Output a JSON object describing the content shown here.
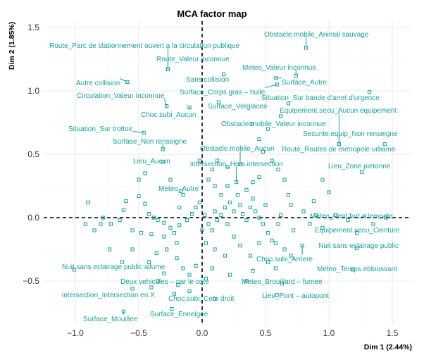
{
  "chart_data": {
    "type": "scatter",
    "title": "MCA factor map",
    "xlabel": "Dim 1 (2.44%)",
    "ylabel": "Dim 2 (1.85%)",
    "xlim": [
      -1.25,
      1.65
    ],
    "ylim": [
      -0.85,
      1.55
    ],
    "xticks": [
      -1.0,
      -0.5,
      0.0,
      0.5,
      1.0,
      1.5
    ],
    "yticks": [
      -0.5,
      0.0,
      0.5,
      1.0,
      1.5
    ],
    "xtick_labels": [
      "−1.0",
      "−0.5",
      "0.0",
      "0.5",
      "1.0",
      "1.5"
    ],
    "ytick_labels": [
      "−0.5",
      "0.0",
      "0.5",
      "1.0",
      "1.5"
    ],
    "colors": {
      "points": "#1a9e9e",
      "grid": "#ebebeb",
      "reference": "#000000"
    },
    "labeled_points": [
      {
        "label": "Obstacle.mobile_Animal sauvage",
        "x": 0.82,
        "y": 1.34
      },
      {
        "label": "Route_Parc de stationnement ouvert a la circulation publique",
        "x": -0.27,
        "y": 1.17
      },
      {
        "label": "Route_Valeur inconnue",
        "x": -0.27,
        "y": 1.17
      },
      {
        "label": "Meteo_Valeur inconnue",
        "x": 0.74,
        "y": 1.12
      },
      {
        "label": "Autre collision",
        "x": -0.59,
        "y": 1.07
      },
      {
        "label": "Sans collision",
        "x": 0.17,
        "y": 1.13
      },
      {
        "label": "Surface_Autre",
        "x": 0.58,
        "y": 1.1
      },
      {
        "label": "Surface_Corps gras – huile",
        "x": 0.59,
        "y": 1.05
      },
      {
        "label": "Circulation_Valeur inconnue",
        "x": -0.28,
        "y": 0.88
      },
      {
        "label": "Situation_Sur bande d'arret d'urgence",
        "x": 1.32,
        "y": 0.99
      },
      {
        "label": "Surface_Verglacee",
        "x": 0.13,
        "y": 0.91
      },
      {
        "label": "Choc.subi_Aucun",
        "x": -0.1,
        "y": 0.87
      },
      {
        "label": "Equipement.secu_Aucun equipement",
        "x": 1.08,
        "y": 0.58
      },
      {
        "label": "Obstacle.mobile_Valeur inconnue",
        "x": 0.39,
        "y": 0.74
      },
      {
        "label": "Situation_Sur trottoir",
        "x": -0.46,
        "y": 0.67
      },
      {
        "label": "Securite.equip_Non renseigne",
        "x": 1.08,
        "y": 0.58
      },
      {
        "label": "Surface_Non renseigne",
        "x": -0.31,
        "y": 0.54
      },
      {
        "label": "Route_Routes de metropole urbaine",
        "x": 1.44,
        "y": 0.58
      },
      {
        "label": "Obstacle.mobile_Aucun",
        "x": 0.3,
        "y": 0.42
      },
      {
        "label": "Lieu_Aucun",
        "x": -0.31,
        "y": 0.44
      },
      {
        "label": "intersection_Hors intersection",
        "x": 0.27,
        "y": 0.28
      },
      {
        "label": "Lieu_Zone pietonne",
        "x": 1.26,
        "y": 0.36
      },
      {
        "label": "Meteo_Autre",
        "x": -0.17,
        "y": 0.21
      },
      {
        "label": "Meteo_Vent fort – tempete",
        "x": 1.28,
        "y": 0.01
      },
      {
        "label": "Equipement.secu_Ceinture",
        "x": 1.22,
        "y": -0.12
      },
      {
        "label": "Nuit sans eclairage public",
        "x": 1.22,
        "y": -0.24
      },
      {
        "label": "Choc.subi_Arriere",
        "x": 0.79,
        "y": -0.22
      },
      {
        "label": "Nuit sans eclairage public allume",
        "x": -1.01,
        "y": -0.41
      },
      {
        "label": "Meteo_Temps ebloussant",
        "x": 1.19,
        "y": -0.41
      },
      {
        "label": "Deux vehicules – par le cote",
        "x": -0.19,
        "y": -0.53
      },
      {
        "label": "Meteo_Brouillard – fumee",
        "x": 0.63,
        "y": -0.52
      },
      {
        "label": "intersection_Intersection en X",
        "x": -0.55,
        "y": -0.56
      },
      {
        "label": "Lieu_Pont – autopont",
        "x": 0.59,
        "y": -0.61
      },
      {
        "label": "Choc.subi_Cote droit",
        "x": 0.1,
        "y": -0.64
      },
      {
        "label": "Surface_Enneigee",
        "x": -0.24,
        "y": -0.72
      },
      {
        "label": "Surface_Mouillee",
        "x": -0.62,
        "y": -0.74
      }
    ],
    "unlabeled_points": [
      [
        -0.6,
        0.13
      ],
      [
        -0.5,
        0.17
      ],
      [
        -0.45,
        0.11
      ],
      [
        -0.62,
        0.06
      ],
      [
        -0.65,
        -0.02
      ],
      [
        -0.72,
        -0.05
      ],
      [
        -0.8,
        -0.05
      ],
      [
        -0.42,
        0.03
      ],
      [
        -0.38,
        0.0
      ],
      [
        -0.35,
        -0.02
      ],
      [
        -0.3,
        -0.04
      ],
      [
        -0.25,
        -0.08
      ],
      [
        -0.55,
        -0.1
      ],
      [
        -0.48,
        -0.12
      ],
      [
        -0.4,
        -0.13
      ],
      [
        -0.3,
        -0.15
      ],
      [
        -0.22,
        -0.12
      ],
      [
        -0.18,
        -0.06
      ],
      [
        -0.12,
        -0.02
      ],
      [
        -0.08,
        0.03
      ],
      [
        -0.05,
        0.08
      ],
      [
        -0.02,
        0.12
      ],
      [
        -0.15,
        0.18
      ],
      [
        -0.2,
        -0.2
      ],
      [
        -0.28,
        -0.25
      ],
      [
        -0.36,
        -0.28
      ],
      [
        -0.42,
        -0.35
      ],
      [
        -0.55,
        -0.25
      ],
      [
        -0.73,
        -0.25
      ],
      [
        -0.63,
        -0.35
      ],
      [
        -0.2,
        -0.32
      ],
      [
        -0.15,
        -0.4
      ],
      [
        -0.1,
        -0.45
      ],
      [
        -0.05,
        -0.38
      ],
      [
        -0.3,
        -0.44
      ],
      [
        -0.35,
        -0.5
      ],
      [
        -0.4,
        -0.55
      ],
      [
        -0.22,
        -0.6
      ],
      [
        -0.1,
        -0.58
      ],
      [
        0.03,
        -0.48
      ],
      [
        0.08,
        -0.4
      ],
      [
        0.02,
        0.02
      ],
      [
        0.05,
        -0.05
      ],
      [
        0.08,
        -0.1
      ],
      [
        0.1,
        0.05
      ],
      [
        0.12,
        -0.02
      ],
      [
        0.15,
        0.02
      ],
      [
        0.18,
        0.08
      ],
      [
        0.2,
        -0.05
      ],
      [
        0.22,
        0.12
      ],
      [
        0.25,
        0.05
      ],
      [
        0.28,
        0.18
      ],
      [
        0.3,
        0.1
      ],
      [
        0.32,
        0.03
      ],
      [
        0.35,
        -0.02
      ],
      [
        0.38,
        0.08
      ],
      [
        0.4,
        0.15
      ],
      [
        0.42,
        0.05
      ],
      [
        0.45,
        0.0
      ],
      [
        0.48,
        -0.05
      ],
      [
        0.5,
        0.1
      ],
      [
        0.52,
        -0.12
      ],
      [
        0.55,
        -0.18
      ],
      [
        0.58,
        -0.2
      ],
      [
        0.6,
        -0.05
      ],
      [
        0.62,
        0.02
      ],
      [
        0.35,
        0.22
      ],
      [
        0.4,
        0.28
      ],
      [
        0.45,
        0.32
      ],
      [
        0.2,
        0.25
      ],
      [
        0.15,
        0.18
      ],
      [
        0.1,
        0.25
      ],
      [
        0.25,
        -0.15
      ],
      [
        0.3,
        -0.22
      ],
      [
        0.38,
        -0.3
      ],
      [
        0.45,
        -0.2
      ],
      [
        0.52,
        -0.35
      ],
      [
        0.58,
        -0.4
      ],
      [
        0.65,
        -0.25
      ],
      [
        0.7,
        -0.3
      ],
      [
        0.72,
        -0.1
      ],
      [
        0.8,
        0.05
      ],
      [
        0.85,
        -0.05
      ],
      [
        0.9,
        0.02
      ],
      [
        0.95,
        -0.08
      ],
      [
        0.88,
        0.13
      ],
      [
        0.7,
        0.1
      ],
      [
        0.68,
        0.18
      ],
      [
        0.65,
        0.3
      ],
      [
        0.6,
        0.38
      ],
      [
        0.55,
        0.45
      ],
      [
        0.48,
        0.52
      ],
      [
        0.2,
        0.4
      ],
      [
        0.12,
        0.45
      ],
      [
        0.08,
        0.38
      ],
      [
        0.05,
        0.3
      ],
      [
        -0.02,
        0.45
      ],
      [
        0.0,
        -0.1
      ],
      [
        0.03,
        -0.2
      ],
      [
        0.1,
        -0.25
      ],
      [
        0.18,
        -0.3
      ],
      [
        0.22,
        -0.45
      ],
      [
        0.35,
        -0.5
      ],
      [
        0.4,
        -0.42
      ],
      [
        1.05,
        0.02
      ],
      [
        1.15,
        -0.02
      ],
      [
        1.35,
        -0.05
      ],
      [
        1.45,
        0.0
      ],
      [
        0.95,
        0.3
      ],
      [
        1.0,
        0.2
      ],
      [
        -0.9,
        0.12
      ],
      [
        -0.85,
        -0.1
      ],
      [
        -0.78,
        0.0
      ],
      [
        -0.92,
        -0.05
      ],
      [
        -0.5,
        0.3
      ],
      [
        -0.45,
        0.35
      ],
      [
        -0.25,
        0.3
      ],
      [
        -0.18,
        0.08
      ],
      [
        0.45,
        0.62
      ],
      [
        0.52,
        0.7
      ],
      [
        0.62,
        0.8
      ],
      [
        0.68,
        0.9
      ]
    ]
  }
}
